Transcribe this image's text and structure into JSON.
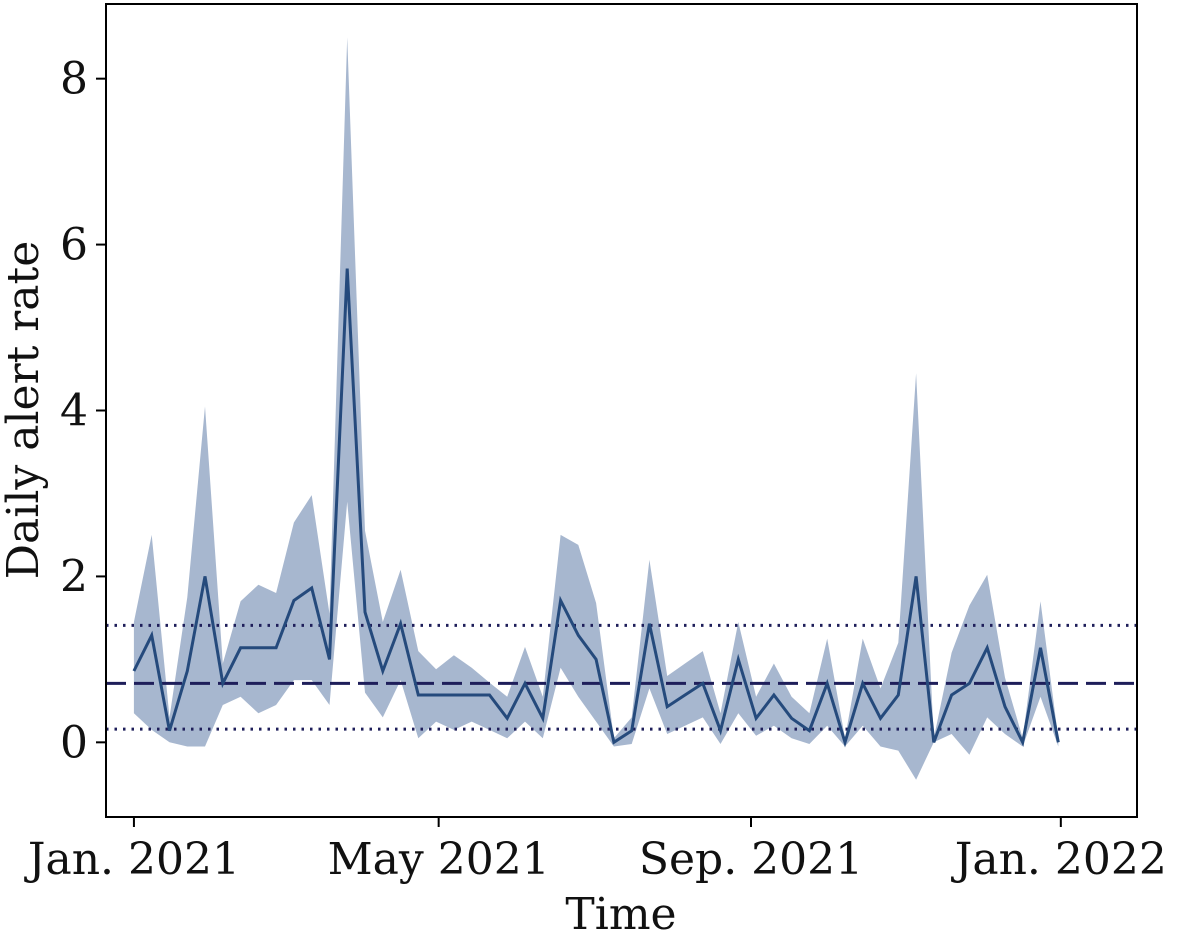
{
  "chart_data": {
    "type": "line",
    "title": "",
    "xlabel": "Time",
    "ylabel": "Daily alert rate",
    "xlim": [
      "2020-12-21",
      "2022-01-31"
    ],
    "ylim": [
      -0.9,
      8.9
    ],
    "x_ticks": [
      {
        "date": "2021-01-01",
        "label": "Jan. 2021"
      },
      {
        "date": "2021-05-01",
        "label": "May 2021"
      },
      {
        "date": "2021-09-01",
        "label": "Sep. 2021"
      },
      {
        "date": "2022-01-01",
        "label": "Jan. 2022"
      }
    ],
    "y_ticks": [
      0,
      2,
      4,
      6,
      8
    ],
    "grid": false,
    "line_color": "#254a7c",
    "band_color": "#a7b7cf",
    "reference_color": "#1e1e5a",
    "series": [
      {
        "x": [
          "2021-01-01",
          "2021-01-08",
          "2021-01-15",
          "2021-01-22",
          "2021-01-29",
          "2021-02-05",
          "2021-02-12",
          "2021-02-19",
          "2021-02-26",
          "2021-03-05",
          "2021-03-12",
          "2021-03-19",
          "2021-03-26",
          "2021-04-02",
          "2021-04-09",
          "2021-04-16",
          "2021-04-23",
          "2021-04-30",
          "2021-05-07",
          "2021-05-14",
          "2021-05-21",
          "2021-05-28",
          "2021-06-04",
          "2021-06-11",
          "2021-06-18",
          "2021-06-25",
          "2021-07-02",
          "2021-07-09",
          "2021-07-16",
          "2021-07-23",
          "2021-07-30",
          "2021-08-06",
          "2021-08-13",
          "2021-08-20",
          "2021-08-27",
          "2021-09-03",
          "2021-09-10",
          "2021-09-17",
          "2021-09-24",
          "2021-10-01",
          "2021-10-08",
          "2021-10-15",
          "2021-10-22",
          "2021-10-29",
          "2021-11-05",
          "2021-11-12",
          "2021-11-19",
          "2021-11-26",
          "2021-12-03",
          "2021-12-10",
          "2021-12-17",
          "2021-12-24",
          "2021-12-31"
        ],
        "y": [
          0.86,
          1.29,
          0.14,
          0.86,
          2.0,
          0.71,
          1.14,
          1.14,
          1.14,
          1.71,
          1.86,
          1.0,
          5.71,
          1.57,
          0.86,
          1.43,
          0.57,
          0.57,
          0.57,
          0.57,
          0.57,
          0.29,
          0.71,
          0.29,
          1.71,
          1.29,
          1.0,
          0.0,
          0.14,
          1.43,
          0.43,
          0.57,
          0.71,
          0.14,
          1.0,
          0.29,
          0.57,
          0.29,
          0.14,
          0.71,
          0.0,
          0.71,
          0.29,
          0.57,
          2.0,
          0.0,
          0.57,
          0.71,
          1.14,
          0.43,
          0.0,
          1.14,
          0.0
        ],
        "lower": [
          0.35,
          0.15,
          0.0,
          -0.05,
          -0.05,
          0.45,
          0.55,
          0.35,
          0.45,
          0.75,
          0.75,
          0.45,
          2.9,
          0.6,
          0.3,
          0.75,
          0.05,
          0.25,
          0.15,
          0.25,
          0.15,
          0.05,
          0.25,
          0.05,
          0.9,
          0.55,
          0.25,
          -0.05,
          -0.02,
          0.65,
          0.1,
          0.2,
          0.3,
          -0.02,
          0.35,
          0.08,
          0.2,
          0.05,
          -0.02,
          0.2,
          -0.05,
          0.2,
          -0.05,
          -0.1,
          -0.45,
          0.0,
          0.1,
          -0.15,
          0.3,
          0.1,
          -0.05,
          0.55,
          -0.05
        ],
        "upper": [
          1.45,
          2.5,
          0.3,
          1.75,
          4.05,
          0.95,
          1.7,
          1.9,
          1.8,
          2.65,
          2.98,
          1.55,
          8.5,
          2.55,
          1.45,
          2.08,
          1.1,
          0.88,
          1.05,
          0.9,
          0.72,
          0.55,
          1.15,
          0.55,
          2.5,
          2.38,
          1.68,
          0.05,
          0.3,
          2.2,
          0.8,
          0.95,
          1.1,
          0.35,
          1.45,
          0.55,
          0.95,
          0.55,
          0.35,
          1.25,
          0.05,
          1.25,
          0.65,
          1.2,
          4.45,
          0.05,
          1.08,
          1.65,
          2.02,
          0.78,
          0.05,
          1.7,
          0.05
        ]
      }
    ],
    "reference_lines": [
      {
        "y": 0.71,
        "style": "dashed"
      },
      {
        "y": 1.41,
        "style": "dotted"
      },
      {
        "y": 0.16,
        "style": "dotted"
      }
    ]
  }
}
